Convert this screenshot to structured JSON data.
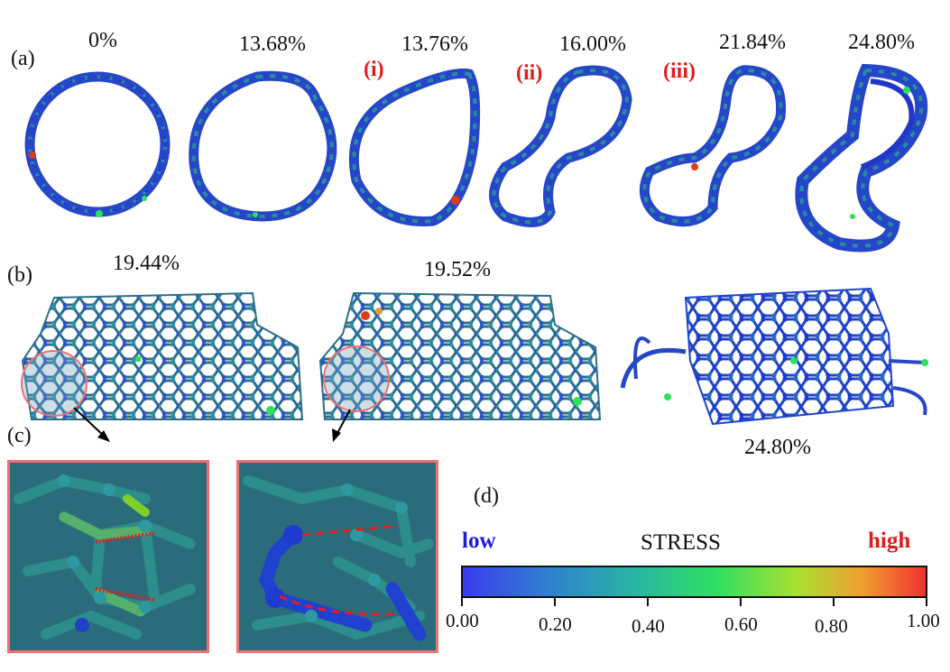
{
  "panels": {
    "a": "(a)",
    "b": "(b)",
    "c": "(c)",
    "d": "(d)"
  },
  "row_a": {
    "strains": [
      "0%",
      "13.68%",
      "13.76%",
      "16.00%",
      "21.84%",
      "24.80%"
    ],
    "markers": [
      "(i)",
      "(ii)",
      "(iii)"
    ]
  },
  "row_b": {
    "strains": [
      "19.44%",
      "19.52%",
      "24.80%"
    ]
  },
  "colorbar": {
    "title": "STRESS",
    "low": "low",
    "high": "high",
    "ticks": [
      "0.00",
      "0.20",
      "0.40",
      "0.60",
      "0.80",
      "1.00"
    ],
    "stops": [
      "#3a3af0",
      "#2f7fd0",
      "#28b8a0",
      "#30e060",
      "#a8e030",
      "#f0a030",
      "#f03030"
    ]
  },
  "colors": {
    "atom_low": "#2a3cd8",
    "atom_mid": "#2e7f8f",
    "atom_green": "#2ee05a",
    "atom_red": "#e03a1a",
    "highlight": "#f07070",
    "dashed": "#e81c1c"
  }
}
